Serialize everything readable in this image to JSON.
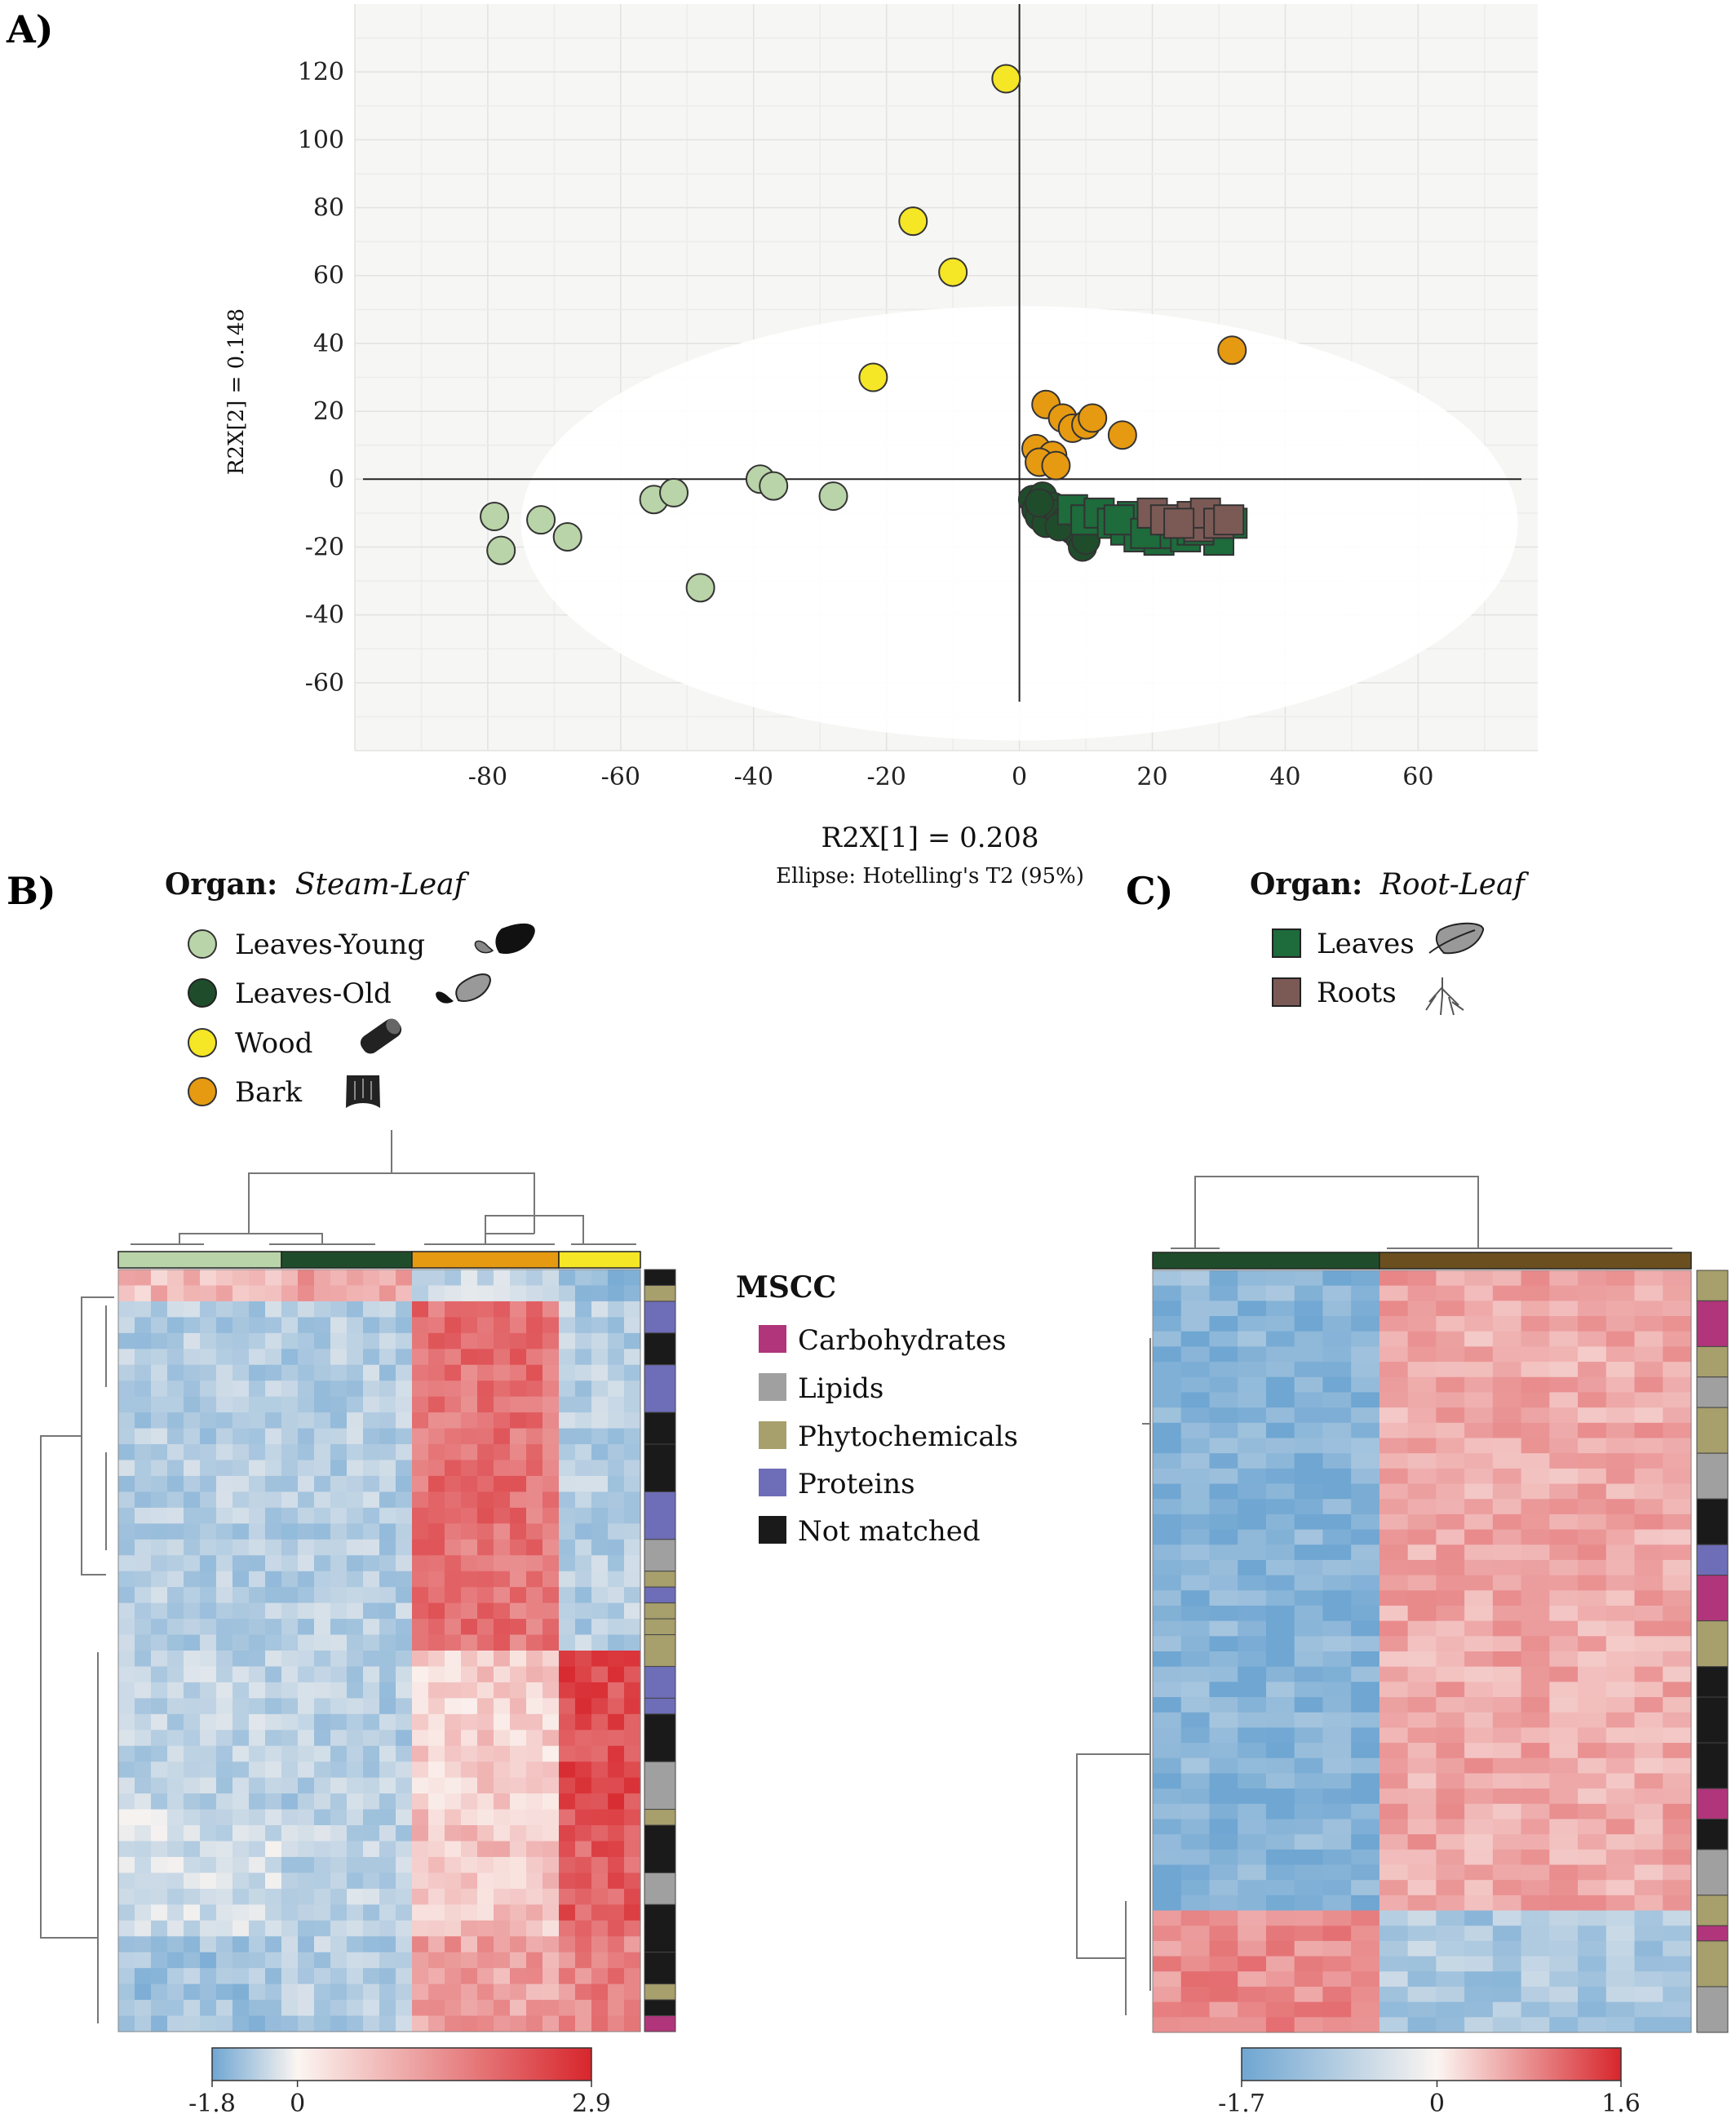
{
  "panels": {
    "a": "A)",
    "b": "B)",
    "c": "C)"
  },
  "colors": {
    "leaves_young": "#b9d4a8",
    "leaves_old": "#1f4d2b",
    "wood": "#f5e626",
    "bark": "#e69a12",
    "leaves": "#1e6b3c",
    "roots": "#7b5a56",
    "root_bar": "#6b4f1f",
    "carbohydrates": "#b0357a",
    "lipids": "#a0a0a0",
    "phytochemicals": "#a79f6c",
    "proteins": "#6e6db8",
    "not_matched": "#1a1a1a",
    "heat_low": "#6fa6d2",
    "heat_mid": "#fbf5f1",
    "heat_high": "#d7262c"
  },
  "chart_data": [
    {
      "type": "scatter",
      "panel": "A)",
      "xlabel": "R2X[1] = 0.208",
      "ylabel": "R2X[2] = 0.148",
      "note": "Ellipse: Hotelling's T2 (95%)",
      "xlim": [
        -100,
        78
      ],
      "ylim": [
        -80,
        140
      ],
      "xticks": [
        "-80",
        "-60",
        "-40",
        "-20",
        "0",
        "20",
        "40",
        "60"
      ],
      "yticks": [
        "120",
        "100",
        "80",
        "60",
        "40",
        "20",
        "0",
        "-20",
        "-40",
        "-60"
      ],
      "grid": true,
      "ellipse": {
        "cx": 0,
        "cy": -13,
        "rx": 75,
        "ry": 64
      },
      "series": [
        {
          "name": "Leaves-Young",
          "marker": "circle",
          "color": "#b9d4a8",
          "x": [
            -79,
            -78,
            -72,
            -68,
            -55,
            -52,
            -48,
            -39,
            -37,
            -28
          ],
          "y": [
            -11,
            -21,
            -12,
            -17,
            -6,
            -4,
            -32,
            0,
            -2,
            -5
          ]
        },
        {
          "name": "Leaves-Old",
          "marker": "circle",
          "color": "#1f4d2b",
          "x": [
            2,
            2.5,
            3,
            3.5,
            4,
            5,
            6,
            7,
            8,
            9,
            9.5,
            10,
            3,
            6
          ],
          "y": [
            -6,
            -9,
            -11,
            -5,
            -13,
            -8,
            -10,
            -12,
            -15,
            -17,
            -20,
            -18,
            -7,
            -14
          ]
        },
        {
          "name": "Wood",
          "marker": "circle",
          "color": "#f5e626",
          "x": [
            -2,
            -16,
            -10,
            -22
          ],
          "y": [
            118,
            76,
            61,
            30
          ]
        },
        {
          "name": "Bark",
          "marker": "circle",
          "color": "#e69a12",
          "x": [
            32,
            4,
            6.5,
            8,
            10,
            11,
            15.5,
            2.5,
            5,
            3,
            5.5
          ],
          "y": [
            38,
            22,
            18,
            15,
            16,
            18,
            13,
            9,
            7,
            5,
            4
          ]
        },
        {
          "name": "Leaves",
          "marker": "square",
          "color": "#1e6b3c",
          "x": [
            8,
            10,
            12,
            14,
            16,
            17,
            18,
            20,
            21,
            22,
            24,
            25,
            26,
            28,
            30,
            32,
            15,
            19,
            23,
            27
          ],
          "y": [
            -9,
            -12,
            -10,
            -13,
            -15,
            -11,
            -17,
            -14,
            -18,
            -16,
            -13,
            -17,
            -15,
            -14,
            -18,
            -13,
            -12,
            -16,
            -12,
            -15
          ]
        },
        {
          "name": "Roots",
          "marker": "square",
          "color": "#7b5a56",
          "x": [
            20,
            22,
            26,
            27,
            28,
            30,
            31.5,
            24
          ],
          "y": [
            -10,
            -12,
            -11,
            -14,
            -10,
            -13,
            -12,
            -13
          ]
        }
      ]
    },
    {
      "type": "heatmap",
      "panel": "B)",
      "colorbar": {
        "min": "-1.8",
        "mid": "0",
        "max": "2.9"
      },
      "column_groups": [
        {
          "name": "Leaves-Young",
          "count": 10
        },
        {
          "name": "Leaves-Old",
          "count": 8
        },
        {
          "name": "Bark",
          "count": 9
        },
        {
          "name": "Wood",
          "count": 5
        }
      ],
      "row_blocks": [
        {
          "rows": 2,
          "values": [
            0.6,
            0.9,
            -0.5,
            -1.0
          ]
        },
        {
          "rows": 22,
          "values": [
            -0.7,
            -0.7,
            1.4,
            -0.7
          ]
        },
        {
          "rows": 10,
          "values": [
            -0.6,
            -0.7,
            0.4,
            1.8
          ]
        },
        {
          "rows": 8,
          "values": [
            -0.4,
            -0.6,
            0.5,
            1.6
          ]
        },
        {
          "rows": 6,
          "values": [
            -0.9,
            -0.7,
            0.9,
            1.2
          ]
        }
      ]
    },
    {
      "type": "heatmap",
      "panel": "C)",
      "colorbar": {
        "min": "-1.7",
        "mid": "0",
        "max": "1.6"
      },
      "column_groups": [
        {
          "name": "Leaves",
          "count": 8
        },
        {
          "name": "Roots",
          "count": 11
        }
      ],
      "row_blocks": [
        {
          "rows": 2,
          "values": [
            -1.1,
            0.9
          ]
        },
        {
          "rows": 40,
          "values": [
            -1.2,
            0.8
          ]
        },
        {
          "rows": 8,
          "values": [
            1.1,
            -0.8
          ]
        }
      ]
    }
  ],
  "legend_b": {
    "title_bold": "Organ:",
    "title_ital": "Steam-Leaf",
    "items": [
      "Leaves-Young",
      "Leaves-Old",
      "Wood",
      "Bark"
    ]
  },
  "legend_c": {
    "title_bold": "Organ:",
    "title_ital": "Root-Leaf",
    "items": [
      "Leaves",
      "Roots"
    ]
  },
  "legend_mscc": {
    "title": "MSCC",
    "items": [
      "Carbohydrates",
      "Lipids",
      "Phytochemicals",
      "Proteins",
      "Not matched"
    ]
  },
  "icons": {
    "leaves_young": "leaf-pair-icon",
    "leaves_old": "leaf-pair-icon",
    "wood": "log-icon",
    "bark": "bark-icon",
    "leaves": "leaf-icon",
    "roots": "roots-icon"
  }
}
